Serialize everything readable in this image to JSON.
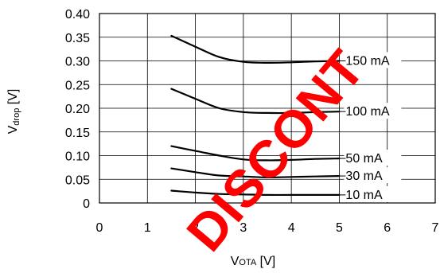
{
  "chart_data": {
    "type": "line",
    "xlabel_main": "V",
    "xlabel_sub": "OTA",
    "xlabel_unit": " [V]",
    "ylabel_main": "V",
    "ylabel_sub": "drop",
    "ylabel_unit": " [V]",
    "xlim": [
      0,
      7
    ],
    "ylim": [
      0,
      0.4
    ],
    "x_ticks": [
      "0",
      "1",
      "2",
      "3",
      "4",
      "5",
      "6",
      "7"
    ],
    "y_ticks": [
      "0",
      "0.05",
      "0.10",
      "0.15",
      "0.20",
      "0.25",
      "0.30",
      "0.35",
      "0.40"
    ],
    "grid": true,
    "series": [
      {
        "name": "150 mA",
        "x": [
          1.5,
          2.0,
          2.5,
          3.0,
          3.5,
          4.0,
          4.5,
          5.0
        ],
        "y": [
          0.353,
          0.33,
          0.308,
          0.298,
          0.296,
          0.297,
          0.299,
          0.3
        ]
      },
      {
        "name": "100 mA",
        "x": [
          1.5,
          2.0,
          2.5,
          3.0,
          3.5,
          4.0,
          4.5,
          5.0
        ],
        "y": [
          0.241,
          0.22,
          0.2,
          0.192,
          0.19,
          0.19,
          0.192,
          0.193
        ]
      },
      {
        "name": "50 mA",
        "x": [
          1.5,
          2.0,
          2.5,
          3.0,
          3.5,
          4.0,
          4.5,
          5.0
        ],
        "y": [
          0.12,
          0.11,
          0.1,
          0.092,
          0.09,
          0.091,
          0.093,
          0.094
        ]
      },
      {
        "name": "30 mA",
        "x": [
          1.5,
          2.0,
          2.5,
          3.0,
          3.5,
          4.0,
          4.5,
          5.0
        ],
        "y": [
          0.073,
          0.065,
          0.058,
          0.056,
          0.054,
          0.055,
          0.056,
          0.057
        ]
      },
      {
        "name": "10 mA",
        "x": [
          1.5,
          2.0,
          2.5,
          3.0,
          3.5,
          4.0,
          4.5,
          5.0
        ],
        "y": [
          0.026,
          0.022,
          0.019,
          0.018,
          0.017,
          0.017,
          0.017,
          0.017
        ]
      }
    ],
    "series_color": "#000000",
    "grid_color": "#000000"
  },
  "watermark": {
    "text": "DISCONT",
    "color": "#ff0000"
  }
}
